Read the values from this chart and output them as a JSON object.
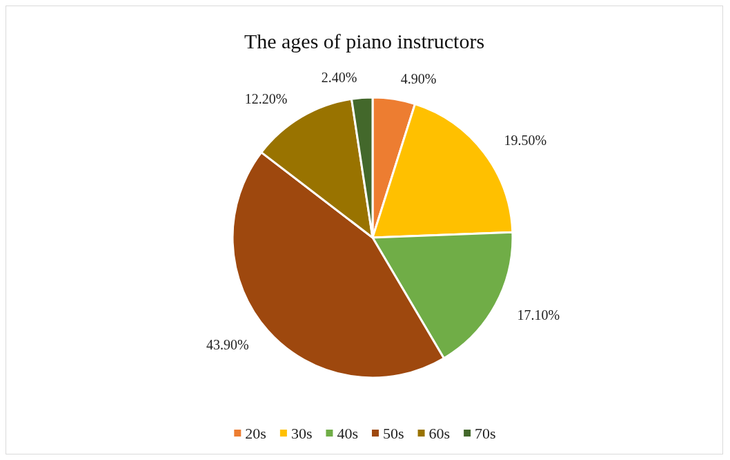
{
  "chart_data": {
    "type": "pie",
    "title": "The ages of piano instructors",
    "categories": [
      "20s",
      "30s",
      "40s",
      "50s",
      "60s",
      "70s"
    ],
    "values": [
      4.9,
      19.5,
      17.1,
      43.9,
      12.2,
      2.4
    ],
    "value_labels": [
      "4.90%",
      "19.50%",
      "17.10%",
      "43.90%",
      "12.20%",
      "2.40%"
    ],
    "colors": [
      "#ed7d31",
      "#ffc000",
      "#70ad47",
      "#9e480e",
      "#997300",
      "#43682b"
    ],
    "legend": "bottom"
  }
}
